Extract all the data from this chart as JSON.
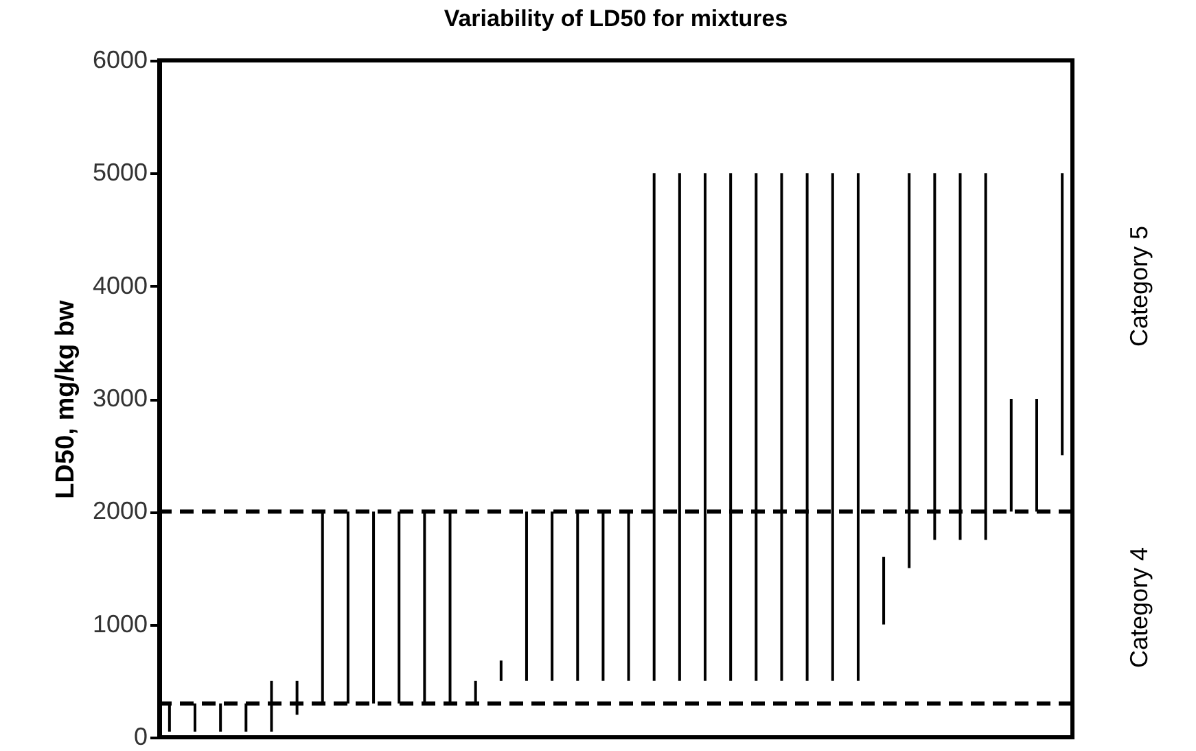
{
  "chart_data": {
    "type": "bar",
    "title": "Variability of LD50 for mixtures",
    "ylabel": "LD50, mg/kg bw",
    "categories": [
      null,
      null,
      null,
      null,
      null,
      null,
      null,
      null,
      null,
      null,
      null,
      null,
      null,
      null,
      null,
      null,
      null,
      null,
      null,
      null,
      null,
      null,
      null,
      null,
      null,
      null,
      null,
      null,
      null,
      null,
      null,
      null,
      null,
      null,
      null,
      null
    ],
    "base": [
      50,
      50,
      50,
      50,
      50,
      200,
      300,
      300,
      300,
      300,
      300,
      300,
      300,
      500,
      500,
      500,
      500,
      500,
      500,
      500,
      500,
      500,
      500,
      500,
      500,
      500,
      500,
      500,
      1000,
      1500,
      1750,
      1750,
      1750,
      2000,
      2000,
      2500
    ],
    "values": [
      250,
      250,
      250,
      250,
      450,
      300,
      1700,
      1700,
      1700,
      1700,
      1700,
      1700,
      200,
      180,
      1500,
      1500,
      1500,
      1500,
      1500,
      4500,
      4500,
      4500,
      4500,
      4500,
      4500,
      4500,
      4500,
      4500,
      600,
      3500,
      3250,
      3250,
      3250,
      1000,
      1000,
      2500
    ],
    "color": "#000000",
    "ylim": [
      0,
      6000
    ],
    "yticks": [
      0,
      1000,
      2000,
      3000,
      4000,
      5000,
      6000
    ],
    "ref_lines": [
      {
        "axis": "y",
        "value": 2000,
        "line_style": "dashed",
        "color": "#000000"
      },
      {
        "axis": "y",
        "value": 300,
        "line_style": "dashed",
        "color": "#000000"
      }
    ],
    "annotations": [
      "Category 5",
      "Category 4"
    ]
  }
}
